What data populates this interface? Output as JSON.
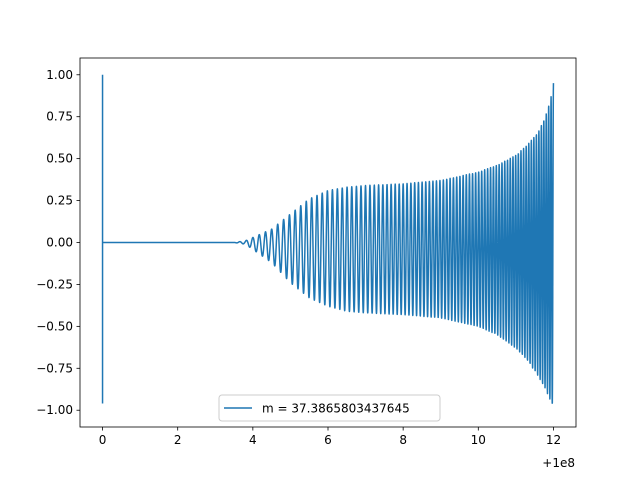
{
  "chart_data": {
    "type": "line",
    "title": "",
    "xlabel": "",
    "ylabel": "",
    "x_offset_label": "+1e8",
    "xlim": [
      -0.6,
      12.6
    ],
    "ylim": [
      -1.1,
      1.1
    ],
    "x_ticks": [
      0,
      2,
      4,
      6,
      8,
      10,
      12
    ],
    "x_tick_labels": [
      "0",
      "2",
      "4",
      "6",
      "8",
      "10",
      "12"
    ],
    "y_ticks": [
      1.0,
      0.75,
      0.5,
      0.25,
      0.0,
      -0.25,
      -0.5,
      -0.75,
      -1.0
    ],
    "y_tick_labels": [
      "1.00",
      "0.75",
      "0.50",
      "0.25",
      "0.00",
      "−0.25",
      "−0.50",
      "−0.75",
      "−1.00"
    ],
    "grid": false,
    "legend_placement": "lower center",
    "series": [
      {
        "name": "m = 37.3865803437645",
        "color": "#1f77b4",
        "envelope": {
          "x": [
            0,
            3.5,
            3.8,
            4.5,
            5.0,
            5.5,
            6.0,
            6.5,
            7.0,
            8.0,
            9.0,
            10.0,
            10.5,
            11.0,
            11.3,
            11.6,
            11.8,
            11.95,
            12.0
          ],
          "max": [
            0,
            0,
            0.01,
            0.08,
            0.17,
            0.26,
            0.31,
            0.33,
            0.34,
            0.35,
            0.37,
            0.42,
            0.46,
            0.52,
            0.58,
            0.66,
            0.76,
            0.88,
            0.95
          ],
          "min": [
            0,
            0,
            -0.01,
            -0.12,
            -0.24,
            -0.33,
            -0.38,
            -0.41,
            -0.42,
            -0.43,
            -0.45,
            -0.5,
            -0.55,
            -0.63,
            -0.7,
            -0.8,
            -0.88,
            -0.96,
            -0.98
          ]
        },
        "oscillation_count": 100,
        "spike": {
          "x": 0,
          "max": 1.0,
          "min": -0.96
        }
      }
    ]
  }
}
